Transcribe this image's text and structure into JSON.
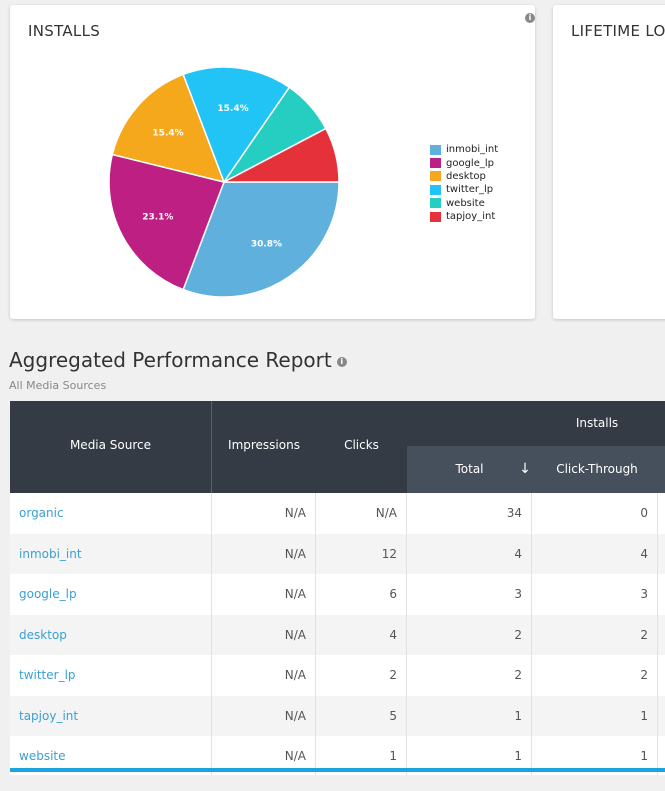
{
  "installs_card": {
    "title": "INSTALLS",
    "info_icon": "i"
  },
  "lifetime_card": {
    "title": "LIFETIME LOYAL"
  },
  "chart_data": {
    "type": "pie",
    "slices": [
      {
        "name": "inmobi_int",
        "value": 30.8,
        "label": "30.8%",
        "color": "#5fb0dc"
      },
      {
        "name": "google_lp",
        "value": 23.1,
        "label": "23.1%",
        "color": "#bd1f82"
      },
      {
        "name": "desktop",
        "value": 15.4,
        "label": "15.4%",
        "color": "#f5a81c"
      },
      {
        "name": "twitter_lp",
        "value": 15.4,
        "label": "15.4%",
        "color": "#22c4f5"
      },
      {
        "name": "website",
        "value": 7.7,
        "label": "",
        "color": "#26cdc1"
      },
      {
        "name": "tapjoy_int",
        "value": 7.7,
        "label": "",
        "color": "#e5323a"
      }
    ],
    "legend_placement": "right"
  },
  "report": {
    "title": "Aggregated Performance Report",
    "info_icon": "i",
    "subtitle": "All Media Sources"
  },
  "table": {
    "headers": {
      "media_source": "Media Source",
      "impressions": "Impressions",
      "clicks": "Clicks",
      "installs": "Installs",
      "total": "Total",
      "sort_arrow": "↓",
      "click_through": "Click-Through"
    },
    "rows": [
      {
        "source": "organic",
        "impressions": "N/A",
        "clicks": "N/A",
        "total": "34",
        "click_through": "0"
      },
      {
        "source": "inmobi_int",
        "impressions": "N/A",
        "clicks": "12",
        "total": "4",
        "click_through": "4"
      },
      {
        "source": "google_lp",
        "impressions": "N/A",
        "clicks": "6",
        "total": "3",
        "click_through": "3"
      },
      {
        "source": "desktop",
        "impressions": "N/A",
        "clicks": "4",
        "total": "2",
        "click_through": "2"
      },
      {
        "source": "twitter_lp",
        "impressions": "N/A",
        "clicks": "2",
        "total": "2",
        "click_through": "2"
      },
      {
        "source": "tapjoy_int",
        "impressions": "N/A",
        "clicks": "5",
        "total": "1",
        "click_through": "1"
      },
      {
        "source": "website",
        "impressions": "N/A",
        "clicks": "1",
        "total": "1",
        "click_through": "1"
      }
    ]
  }
}
